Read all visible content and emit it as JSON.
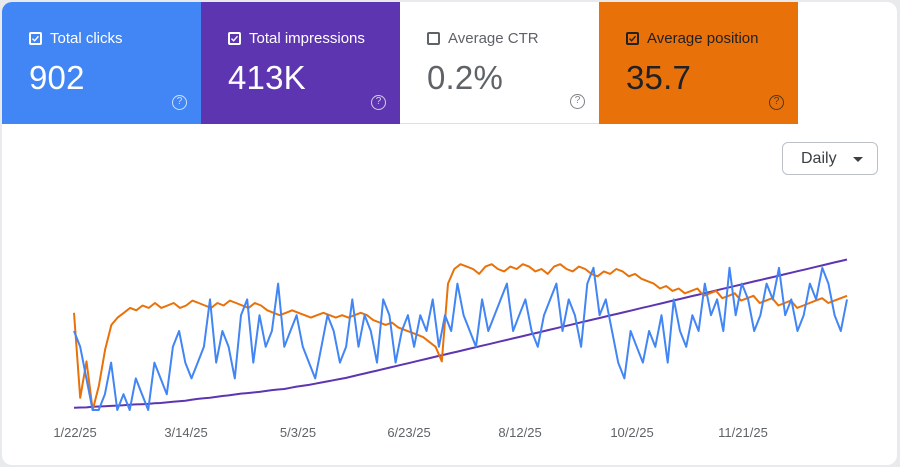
{
  "metrics": [
    {
      "label": "Total clicks",
      "value": "902",
      "checked": true,
      "color": "#4285f4"
    },
    {
      "label": "Total impressions",
      "value": "413K",
      "checked": true,
      "color": "#5e35b1"
    },
    {
      "label": "Average CTR",
      "value": "0.2%",
      "checked": false,
      "color": "#ffffff"
    },
    {
      "label": "Average position",
      "value": "35.7",
      "checked": true,
      "color": "#e8710a"
    }
  ],
  "help_glyph": "?",
  "granularity": {
    "selected": "Daily"
  },
  "chart_data": {
    "type": "line",
    "x_tick_labels": [
      "1/22/25",
      "3/14/25",
      "5/3/25",
      "6/23/25",
      "8/12/25",
      "10/2/25",
      "11/21/25"
    ],
    "x_range": [
      "1/22/25",
      "12/31/25"
    ],
    "y_axis_labels_visible": false,
    "series": [
      {
        "name": "Total clicks",
        "color": "#4285f4",
        "values": [
          5,
          4,
          2,
          0,
          0,
          1,
          3,
          0,
          1,
          0,
          2,
          1,
          0,
          3,
          2,
          1,
          4,
          5,
          3,
          2,
          3,
          4,
          7,
          3,
          5,
          4,
          2,
          6,
          7,
          3,
          6,
          4,
          5,
          8,
          4,
          5,
          6,
          4,
          3,
          2,
          4,
          6,
          5,
          3,
          4,
          7,
          4,
          6,
          5,
          3,
          7,
          6,
          3,
          5,
          6,
          4,
          6,
          5,
          7,
          4,
          6,
          5,
          8,
          6,
          5,
          4,
          7,
          5,
          6,
          7,
          8,
          5,
          6,
          7,
          5,
          4,
          6,
          7,
          8,
          5,
          7,
          6,
          4,
          8,
          9,
          6,
          7,
          5,
          3,
          2,
          5,
          4,
          3,
          5,
          4,
          6,
          3,
          7,
          5,
          4,
          6,
          5,
          8,
          6,
          7,
          5,
          9,
          6,
          8,
          7,
          5,
          6,
          8,
          7,
          9,
          6,
          7,
          5,
          6,
          8,
          7,
          9,
          8,
          6,
          5,
          7
        ]
      },
      {
        "name": "Total impressions",
        "color": "#5e35b1",
        "values": [
          80,
          85,
          90,
          110,
          120,
          130,
          140,
          150,
          160,
          180,
          190,
          200,
          210,
          230,
          240,
          260,
          280,
          300,
          320,
          350,
          380,
          400,
          420,
          450,
          480,
          500,
          530,
          560,
          580,
          600,
          620,
          650,
          680,
          700,
          720,
          760,
          800,
          830,
          860,
          900,
          940,
          980,
          1020,
          1060,
          1100,
          1150,
          1200,
          1250,
          1300,
          1350,
          1400,
          1450,
          1500,
          1550,
          1600,
          1650,
          1700,
          1750,
          1800,
          1850,
          1900,
          1950,
          2000,
          2050,
          2100,
          2150,
          2200,
          2250,
          2300,
          2350,
          2400,
          2450,
          2500,
          2550,
          2600,
          2650,
          2700,
          2750,
          2800,
          2850,
          2900,
          2950,
          3000,
          3050,
          3100,
          3150,
          3200,
          3250,
          3300,
          3350,
          3400,
          3450,
          3500,
          3550,
          3600,
          3650,
          3700,
          3750,
          3800,
          3850,
          3900,
          3950,
          4000,
          4050,
          4100,
          4150,
          4200,
          4250,
          4300,
          4350,
          4400,
          4450,
          4500,
          4550,
          4600,
          4650,
          4700,
          4750,
          4800,
          4850,
          4900,
          4950,
          5000,
          5050,
          5100,
          5150
        ]
      },
      {
        "name": "Average position",
        "color": "#e8710a",
        "values": [
          40,
          75,
          60,
          80,
          70,
          55,
          45,
          42,
          40,
          38,
          39,
          37,
          38,
          36,
          38,
          37,
          36,
          38,
          37,
          35,
          36,
          37,
          38,
          36,
          37,
          35,
          36,
          37,
          38,
          36,
          37,
          39,
          40,
          41,
          40,
          39,
          40,
          41,
          42,
          41,
          40,
          41,
          42,
          41,
          42,
          41,
          40,
          41,
          43,
          44,
          45,
          44,
          46,
          47,
          48,
          49,
          50,
          52,
          54,
          60,
          28,
          22,
          20,
          21,
          22,
          24,
          21,
          20,
          22,
          23,
          21,
          22,
          20,
          21,
          23,
          22,
          24,
          21,
          20,
          22,
          23,
          21,
          22,
          24,
          25,
          23,
          24,
          22,
          23,
          25,
          24,
          26,
          27,
          28,
          30,
          29,
          31,
          30,
          32,
          31,
          30,
          33,
          32,
          31,
          34,
          33,
          32,
          35,
          34,
          33,
          36,
          35,
          34,
          37,
          36,
          35,
          38,
          37,
          36,
          35,
          34,
          36,
          35,
          34,
          33
        ]
      }
    ]
  }
}
